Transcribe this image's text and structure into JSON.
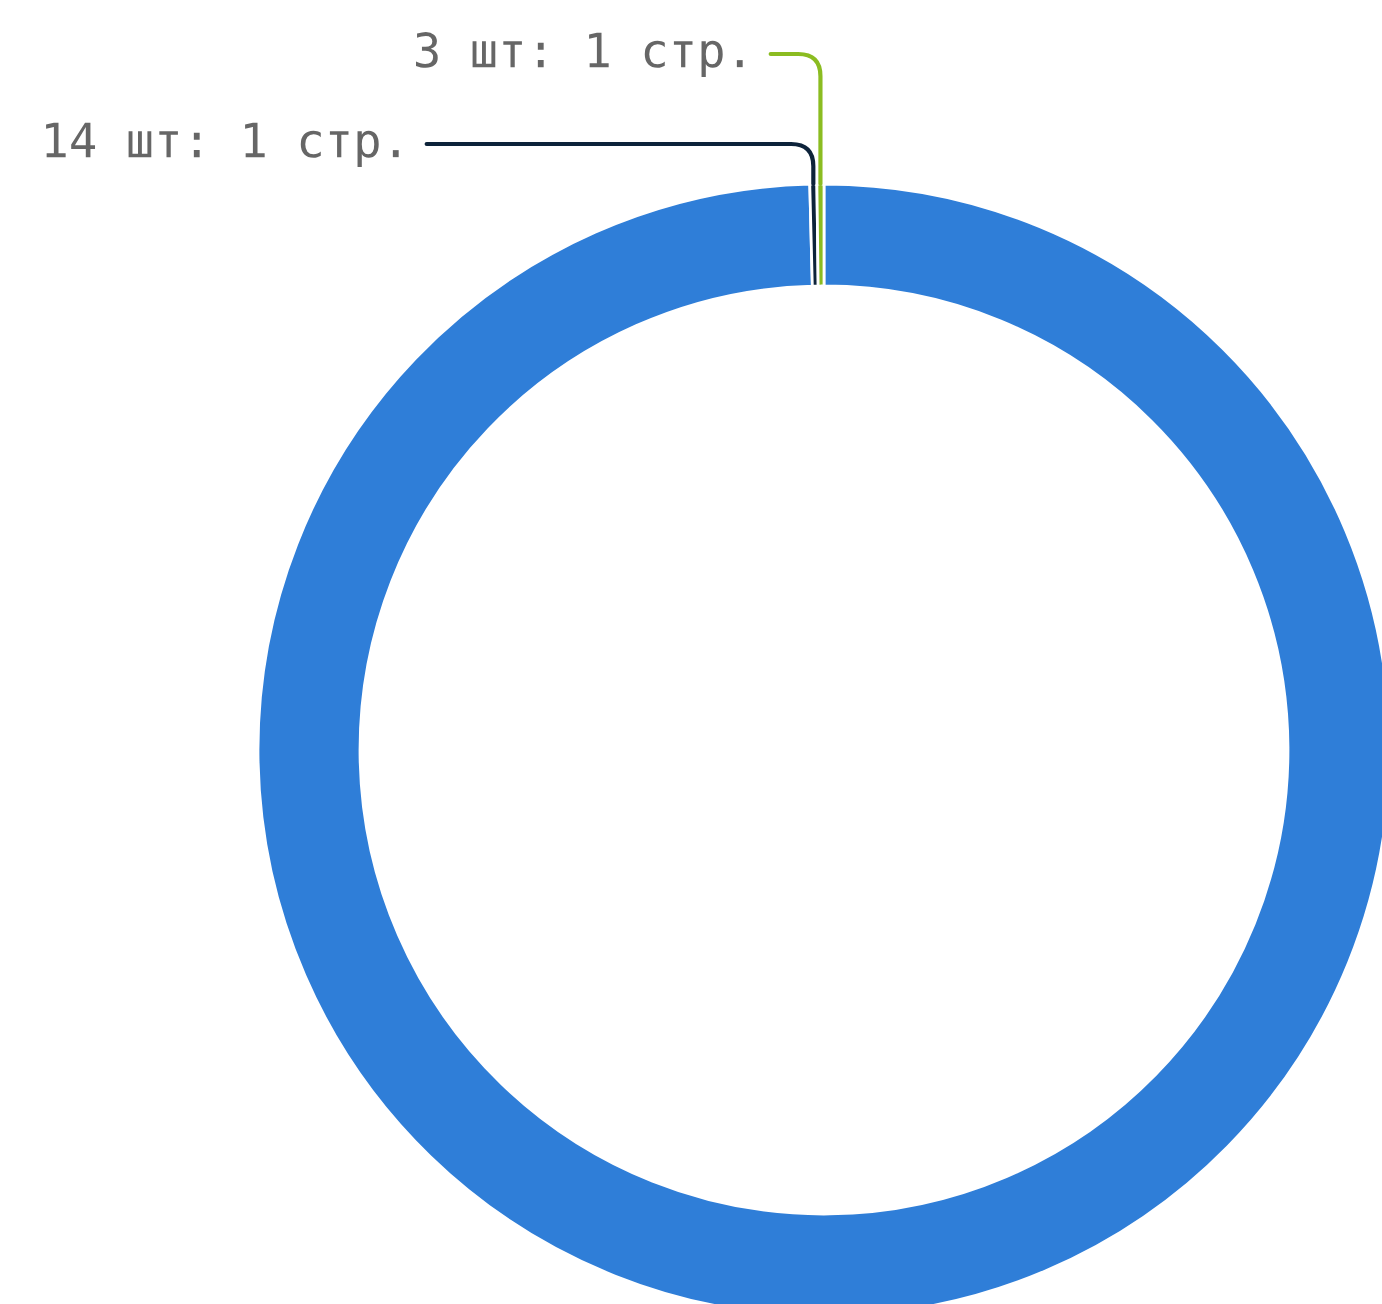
{
  "chart_data": {
    "type": "donut",
    "categories": [
      null,
      "14 шт: 1 стр.",
      "3 шт: 1 стр."
    ],
    "values": [
      99.6,
      0.2,
      0.2
    ],
    "colors": [
      "#2f7ed8",
      "#0d233a",
      "#8bbc21"
    ],
    "legend": false
  }
}
